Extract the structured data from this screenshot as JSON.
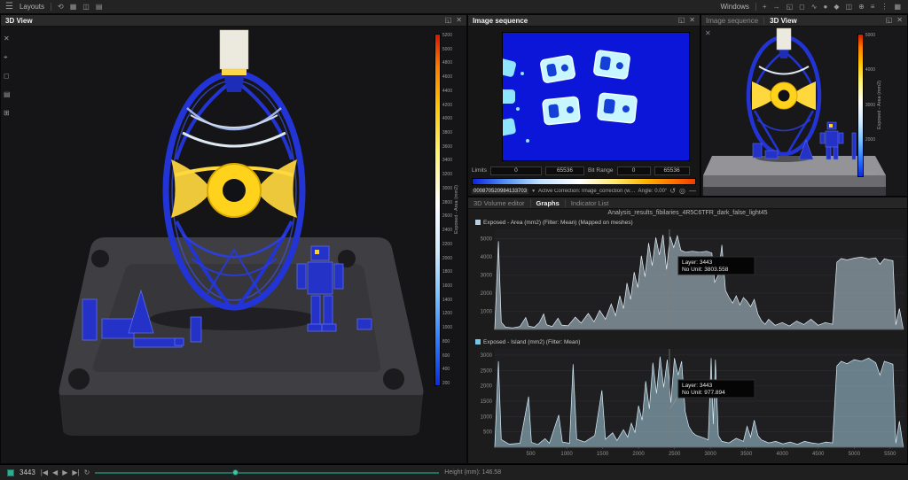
{
  "menu_bar": {
    "hamburger": "☰",
    "layouts_label": "Layouts",
    "windows_label": "Windows",
    "left_icons": [
      {
        "glyph": "⟲",
        "name": "history-icon"
      },
      {
        "glyph": "▦",
        "name": "layout-grid-icon"
      },
      {
        "glyph": "◫",
        "name": "layout-split-icon"
      },
      {
        "glyph": "▤",
        "name": "layout-rows-icon"
      }
    ],
    "right_icons": [
      {
        "glyph": "+",
        "name": "add-icon"
      },
      {
        "glyph": "→",
        "name": "arrow-icon"
      },
      {
        "glyph": "◱",
        "name": "window-restore-icon"
      },
      {
        "glyph": "◻",
        "name": "window-icon"
      },
      {
        "glyph": "∿",
        "name": "curve-icon"
      },
      {
        "glyph": "●",
        "name": "record-icon"
      },
      {
        "glyph": "◆",
        "name": "diamond-icon"
      },
      {
        "glyph": "◫",
        "name": "split-view-icon"
      },
      {
        "glyph": "⊕",
        "name": "add-view-icon"
      },
      {
        "glyph": "≡",
        "name": "list-icon"
      },
      {
        "glyph": "⋮",
        "name": "more-icon"
      },
      {
        "glyph": "▦",
        "name": "grid-icon"
      }
    ]
  },
  "panel_icons": [
    {
      "glyph": "◱",
      "name": "float-panel-icon"
    },
    {
      "glyph": "✕",
      "name": "close-panel-icon"
    }
  ],
  "left_view": {
    "title": "3D View",
    "tools": [
      {
        "glyph": "✕",
        "name": "deselect-icon"
      },
      {
        "glyph": "⌖",
        "name": "fit-view-icon"
      },
      {
        "glyph": "◻",
        "name": "bounds-icon"
      },
      {
        "glyph": "▤",
        "name": "slices-icon"
      },
      {
        "glyph": "⊞",
        "name": "grid-icon"
      }
    ],
    "colorbar": {
      "title": "Exposed - Area (mm2)",
      "labels": [
        "5200",
        "5000",
        "4800",
        "4600",
        "4400",
        "4200",
        "4000",
        "3800",
        "3600",
        "3400",
        "3200",
        "3000",
        "2800",
        "2600",
        "2400",
        "2200",
        "2000",
        "1800",
        "1600",
        "1400",
        "1200",
        "1000",
        "800",
        "600",
        "400",
        "200"
      ]
    }
  },
  "bottom_bar": {
    "layer": "3443",
    "height_label": "Height (mm): 146.58",
    "playback": [
      {
        "glyph": "|◀",
        "name": "skip-start-icon"
      },
      {
        "glyph": "◀",
        "name": "step-back-icon"
      },
      {
        "glyph": "▶",
        "name": "play-icon"
      },
      {
        "glyph": "▶|",
        "name": "skip-end-icon"
      },
      {
        "glyph": "↻",
        "name": "loop-icon"
      }
    ]
  },
  "image_sequence": {
    "title": "Image sequence",
    "limits_label": "Limits",
    "limits_min": "0",
    "limits_max": "65536",
    "bit_range_label": "Bit Range",
    "bit_min": "0",
    "bit_max": "65536",
    "file_id": "000870520984133703",
    "file_caret": "▼",
    "correction_text": "Active Correction:  Image_correction (w×h): 8192 × 5820, bits: 16",
    "angle_text": "Angle: 0.00°",
    "footer_icons": [
      {
        "glyph": "↺",
        "name": "reset-icon"
      },
      {
        "glyph": "◎",
        "name": "capture-icon"
      },
      {
        "glyph": "—",
        "name": "collapse-icon"
      }
    ]
  },
  "right_view": {
    "tab_image_sequence": "Image sequence",
    "tab_3d_view": "3D View",
    "colorbar": {
      "title": "Exposed - Area (mm2)",
      "labels": [
        "5000",
        "4000",
        "3000",
        "2000",
        "1000"
      ]
    }
  },
  "graphs_panel": {
    "tabs": [
      "3D Volume editor",
      "Graphs",
      "Indicator List"
    ],
    "title": "Analysis_results_fibilaries_4R5C6TFR_dark_false_light45",
    "xlabel": "Layers"
  },
  "chart_data": [
    {
      "type": "area",
      "name": "Exposed - Area (mm2) (Filter: Mean) (Mapped on meshes)",
      "swatch": "#b9cfdd",
      "fill": "#b9cfdd",
      "stroke": "#e4eff7",
      "xlim": [
        0,
        5700
      ],
      "ylim": [
        0,
        5500
      ],
      "yticks": [
        1000,
        2000,
        3000,
        4000,
        5000
      ],
      "xticks": [
        500,
        1000,
        1500,
        2000,
        2500,
        3000,
        3500,
        4000,
        4500,
        5000,
        5500
      ],
      "xlabel": "Layers",
      "legend_position": "top-left",
      "grid": true,
      "cursor": {
        "layer": 2430,
        "line1": "Layer: 3443",
        "line2": "No Unit: 3803.558"
      },
      "points": [
        [
          0,
          60
        ],
        [
          50,
          4850
        ],
        [
          90,
          400
        ],
        [
          150,
          120
        ],
        [
          250,
          90
        ],
        [
          350,
          160
        ],
        [
          430,
          650
        ],
        [
          470,
          180
        ],
        [
          550,
          120
        ],
        [
          620,
          380
        ],
        [
          680,
          850
        ],
        [
          720,
          260
        ],
        [
          800,
          160
        ],
        [
          880,
          620
        ],
        [
          930,
          240
        ],
        [
          1020,
          200
        ],
        [
          1120,
          680
        ],
        [
          1200,
          350
        ],
        [
          1300,
          880
        ],
        [
          1380,
          420
        ],
        [
          1460,
          1050
        ],
        [
          1540,
          560
        ],
        [
          1620,
          1400
        ],
        [
          1680,
          760
        ],
        [
          1740,
          1850
        ],
        [
          1790,
          1150
        ],
        [
          1840,
          2550
        ],
        [
          1890,
          1650
        ],
        [
          1940,
          3150
        ],
        [
          1990,
          2300
        ],
        [
          2040,
          4050
        ],
        [
          2090,
          2900
        ],
        [
          2140,
          4750
        ],
        [
          2190,
          3500
        ],
        [
          2240,
          5050
        ],
        [
          2290,
          4100
        ],
        [
          2340,
          5200
        ],
        [
          2390,
          3300
        ],
        [
          2440,
          5100
        ],
        [
          2490,
          4500
        ],
        [
          2540,
          5150
        ],
        [
          2590,
          4350
        ],
        [
          2650,
          4250
        ],
        [
          2750,
          4300
        ],
        [
          2850,
          4250
        ],
        [
          2950,
          4300
        ],
        [
          3020,
          4200
        ],
        [
          3060,
          2600
        ],
        [
          3110,
          3000
        ],
        [
          3160,
          4650
        ],
        [
          3210,
          2150
        ],
        [
          3260,
          1750
        ],
        [
          3310,
          1450
        ],
        [
          3360,
          1850
        ],
        [
          3410,
          1350
        ],
        [
          3460,
          1750
        ],
        [
          3510,
          1550
        ],
        [
          3560,
          1250
        ],
        [
          3610,
          1650
        ],
        [
          3660,
          850
        ],
        [
          3710,
          480
        ],
        [
          3760,
          280
        ],
        [
          3810,
          560
        ],
        [
          3900,
          230
        ],
        [
          4000,
          380
        ],
        [
          4100,
          190
        ],
        [
          4200,
          460
        ],
        [
          4300,
          270
        ],
        [
          4400,
          560
        ],
        [
          4500,
          230
        ],
        [
          4600,
          380
        ],
        [
          4700,
          280
        ],
        [
          4760,
          3700
        ],
        [
          4820,
          3900
        ],
        [
          4900,
          3820
        ],
        [
          5000,
          3920
        ],
        [
          5100,
          3980
        ],
        [
          5200,
          3880
        ],
        [
          5300,
          3940
        ],
        [
          5360,
          3580
        ],
        [
          5420,
          3880
        ],
        [
          5480,
          3820
        ],
        [
          5540,
          3780
        ],
        [
          5580,
          250
        ],
        [
          5630,
          1150
        ],
        [
          5680,
          80
        ]
      ]
    },
    {
      "type": "area",
      "name": "Exposed - Island (mm2) (Filter: Mean)",
      "swatch": "#74c6e4",
      "fill": "#a5cfe2",
      "stroke": "#d8edf8",
      "xlim": [
        0,
        5700
      ],
      "ylim": [
        0,
        3200
      ],
      "yticks": [
        500,
        1000,
        1500,
        2000,
        2500,
        3000
      ],
      "xticks": [
        500,
        1000,
        1500,
        2000,
        2500,
        3000,
        3500,
        4000,
        4500,
        5000,
        5500
      ],
      "xlabel": "Layers",
      "legend_position": "top-left",
      "grid": true,
      "cursor": {
        "layer": 2430,
        "line1": "Layer: 3443",
        "line2": "No Unit: 977.894"
      },
      "points": [
        [
          0,
          50
        ],
        [
          50,
          2800
        ],
        [
          90,
          250
        ],
        [
          200,
          100
        ],
        [
          350,
          130
        ],
        [
          470,
          1650
        ],
        [
          510,
          160
        ],
        [
          600,
          90
        ],
        [
          700,
          280
        ],
        [
          760,
          130
        ],
        [
          890,
          1050
        ],
        [
          940,
          170
        ],
        [
          1040,
          130
        ],
        [
          1090,
          2700
        ],
        [
          1140,
          260
        ],
        [
          1250,
          170
        ],
        [
          1390,
          380
        ],
        [
          1490,
          1850
        ],
        [
          1540,
          260
        ],
        [
          1640,
          470
        ],
        [
          1700,
          220
        ],
        [
          1790,
          570
        ],
        [
          1850,
          330
        ],
        [
          1900,
          780
        ],
        [
          1950,
          480
        ],
        [
          2000,
          1350
        ],
        [
          2050,
          880
        ],
        [
          2100,
          2150
        ],
        [
          2150,
          1250
        ],
        [
          2200,
          2750
        ],
        [
          2250,
          1750
        ],
        [
          2300,
          2950
        ],
        [
          2350,
          1950
        ],
        [
          2400,
          2850
        ],
        [
          2450,
          1450
        ],
        [
          2500,
          2900
        ],
        [
          2550,
          2350
        ],
        [
          2600,
          2800
        ],
        [
          2650,
          1150
        ],
        [
          2700,
          680
        ],
        [
          2750,
          480
        ],
        [
          2800,
          390
        ],
        [
          2860,
          340
        ],
        [
          2920,
          290
        ],
        [
          2970,
          240
        ],
        [
          3010,
          2900
        ],
        [
          3040,
          750
        ],
        [
          3070,
          2850
        ],
        [
          3110,
          380
        ],
        [
          3160,
          190
        ],
        [
          3260,
          140
        ],
        [
          3360,
          290
        ],
        [
          3460,
          190
        ],
        [
          3510,
          680
        ],
        [
          3560,
          330
        ],
        [
          3610,
          880
        ],
        [
          3660,
          380
        ],
        [
          3710,
          240
        ],
        [
          3810,
          140
        ],
        [
          3910,
          190
        ],
        [
          4010,
          110
        ],
        [
          4110,
          170
        ],
        [
          4210,
          95
        ],
        [
          4310,
          190
        ],
        [
          4410,
          140
        ],
        [
          4510,
          110
        ],
        [
          4610,
          170
        ],
        [
          4700,
          140
        ],
        [
          4760,
          2650
        ],
        [
          4820,
          2800
        ],
        [
          4900,
          2720
        ],
        [
          5000,
          2850
        ],
        [
          5100,
          2800
        ],
        [
          5200,
          2900
        ],
        [
          5300,
          2750
        ],
        [
          5360,
          2350
        ],
        [
          5420,
          2800
        ],
        [
          5480,
          2750
        ],
        [
          5540,
          2700
        ],
        [
          5580,
          130
        ],
        [
          5630,
          850
        ],
        [
          5680,
          60
        ]
      ]
    }
  ]
}
